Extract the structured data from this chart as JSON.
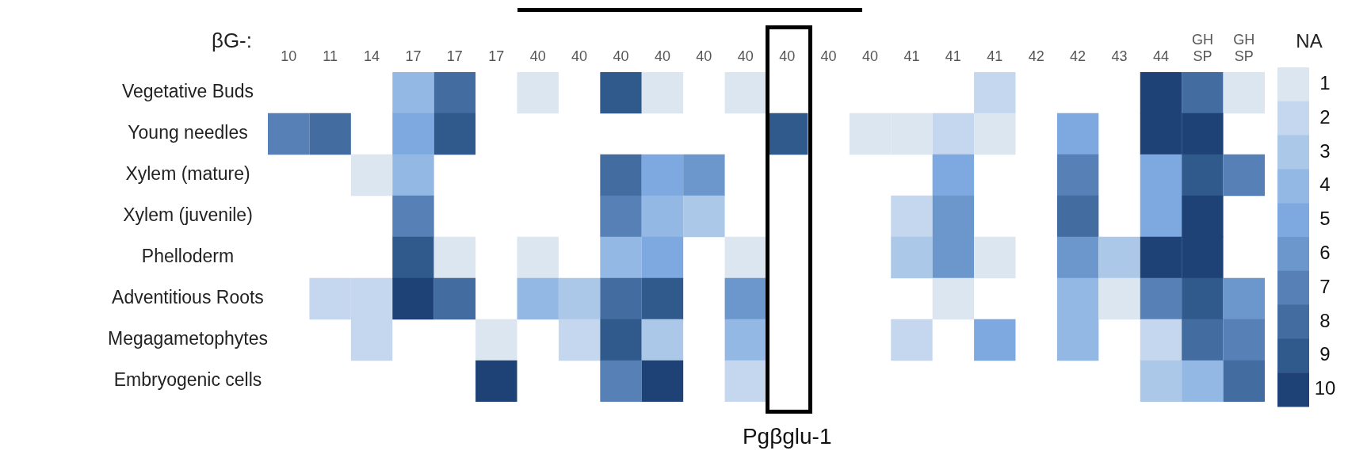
{
  "chart_data": {
    "type": "heatmap",
    "xlabel": "βG-:",
    "clabel": "NA",
    "categories": [
      "10",
      "11",
      "14",
      "17",
      "17",
      "17",
      "40",
      "40",
      "40",
      "40",
      "40",
      "40",
      "40",
      "40",
      "40",
      "41",
      "41",
      "41",
      "42",
      "42",
      "43",
      "44",
      "GH SP",
      "GH SP"
    ],
    "y_categories": [
      "Vegetative Buds",
      "Young needles",
      "Xylem (mature)",
      "Xylem (juvenile)",
      "Phelloderm",
      "Adventitious Roots",
      "Megagametophytes",
      "Embryogenic cells"
    ],
    "cells": [
      [
        null,
        null,
        null,
        4,
        8,
        null,
        1,
        null,
        9,
        1,
        null,
        1,
        null,
        null,
        null,
        null,
        null,
        2,
        null,
        null,
        null,
        10,
        8,
        1
      ],
      [
        7,
        8,
        null,
        5,
        9,
        null,
        null,
        null,
        null,
        null,
        null,
        null,
        9,
        null,
        1,
        1,
        2,
        1,
        null,
        5,
        null,
        10,
        10,
        null
      ],
      [
        null,
        null,
        1,
        4,
        null,
        null,
        null,
        null,
        8,
        5,
        6,
        null,
        null,
        null,
        null,
        null,
        5,
        null,
        null,
        7,
        null,
        5,
        9,
        7
      ],
      [
        null,
        null,
        null,
        7,
        null,
        null,
        null,
        null,
        7,
        4,
        3,
        null,
        null,
        null,
        null,
        2,
        6,
        null,
        null,
        8,
        null,
        5,
        10,
        null
      ],
      [
        null,
        null,
        null,
        9,
        1,
        null,
        1,
        null,
        4,
        5,
        null,
        1,
        null,
        null,
        null,
        3,
        6,
        1,
        null,
        6,
        3,
        10,
        10,
        null
      ],
      [
        null,
        2,
        2,
        10,
        8,
        null,
        4,
        3,
        8,
        9,
        null,
        6,
        null,
        null,
        null,
        null,
        1,
        null,
        null,
        4,
        1,
        7,
        9,
        6
      ],
      [
        null,
        null,
        2,
        null,
        null,
        1,
        null,
        2,
        9,
        3,
        null,
        4,
        null,
        null,
        null,
        2,
        null,
        5,
        null,
        4,
        null,
        2,
        8,
        7
      ],
      [
        null,
        null,
        null,
        null,
        null,
        10,
        null,
        null,
        7,
        10,
        null,
        2,
        null,
        null,
        null,
        null,
        null,
        null,
        null,
        null,
        null,
        3,
        4,
        8
      ]
    ],
    "clim": [
      0.5,
      10.5
    ],
    "cticks": [
      1,
      2,
      3,
      4,
      5,
      6,
      7,
      8,
      9,
      10
    ],
    "annotations": [
      "Pgβglu-1"
    ]
  }
}
